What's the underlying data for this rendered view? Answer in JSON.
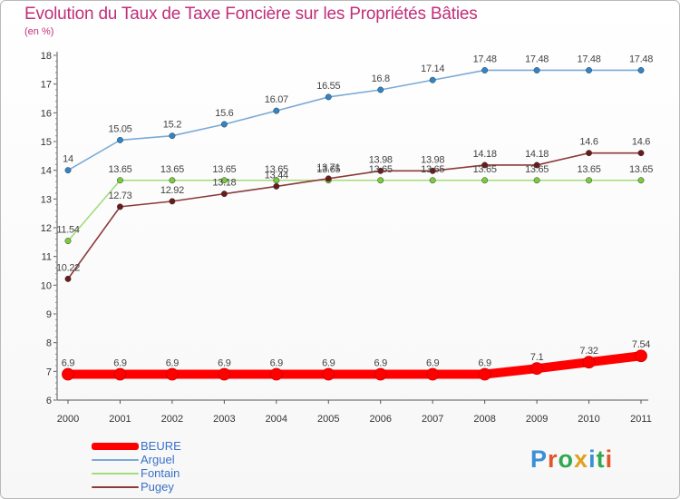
{
  "title": "Evolution du Taux de Taxe Foncière sur les Propriétés Bâties",
  "subtitle": "(en %)",
  "brand": {
    "letters": [
      "P",
      "r",
      "o",
      "x",
      "i",
      "t",
      "i"
    ],
    "colors": [
      "#3b8fd6",
      "#e0552b",
      "#2fa84f",
      "#e0a020",
      "#3b8fd6",
      "#2fa84f",
      "#e0552b"
    ]
  },
  "chart_data": {
    "type": "line",
    "title": "Evolution du Taux de Taxe Foncière sur les Propriétés Bâties",
    "ylabel": "(en %)",
    "xlabel": "",
    "ylim": [
      6,
      18
    ],
    "yticks": [
      6,
      7,
      8,
      9,
      10,
      11,
      12,
      13,
      14,
      15,
      16,
      17,
      18
    ],
    "categories": [
      "2000",
      "2001",
      "2002",
      "2003",
      "2004",
      "2005",
      "2006",
      "2007",
      "2008",
      "2009",
      "2010",
      "2011"
    ],
    "series": [
      {
        "name": "Arguel",
        "color": "#7aaad6",
        "marker": "#2f85c8",
        "values": [
          14,
          15.05,
          15.2,
          15.6,
          16.07,
          16.55,
          16.8,
          17.14,
          17.48,
          17.48,
          17.48,
          17.48
        ],
        "labels": [
          "14",
          "15.05",
          "15.2",
          "15.6",
          "16.07",
          "16.55",
          "16.8",
          "17.14",
          "17.48",
          "17.48",
          "17.48",
          "17.48"
        ]
      },
      {
        "name": "Fontain",
        "color": "#a3dc7a",
        "marker": "#7acc3a",
        "values": [
          11.54,
          13.65,
          13.65,
          13.65,
          13.65,
          13.65,
          13.65,
          13.65,
          13.65,
          13.65,
          13.65,
          13.65
        ],
        "labels": [
          "11.54",
          "13.65",
          "13.65",
          "13.65",
          "13.65",
          "13.65",
          "13.65",
          "13.65",
          "13.65",
          "13.65",
          "13.65",
          "13.65"
        ]
      },
      {
        "name": "Pugey",
        "color": "#8b3a3a",
        "marker": "#6b1a1a",
        "values": [
          10.22,
          12.73,
          12.92,
          13.18,
          13.44,
          13.71,
          13.98,
          13.98,
          14.18,
          14.18,
          14.6,
          14.6
        ],
        "labels": [
          "10.22",
          "12.73",
          "12.92",
          "13.18",
          "13.44",
          "13.71",
          "13.98",
          "13.98",
          "14.18",
          "14.18",
          "14.6",
          "14.6"
        ]
      },
      {
        "name": "BEURE",
        "color": "#ff0000",
        "marker": "#ff0000",
        "values": [
          6.9,
          6.9,
          6.9,
          6.9,
          6.9,
          6.9,
          6.9,
          6.9,
          6.9,
          7.1,
          7.32,
          7.54
        ],
        "labels": [
          "6.9",
          "6.9",
          "6.9",
          "6.9",
          "6.9",
          "6.9",
          "6.9",
          "6.9",
          "6.9",
          "7.1",
          "7.32",
          "7.54"
        ]
      }
    ],
    "legend": [
      "BEURE",
      "Arguel",
      "Fontain",
      "Pugey"
    ],
    "legend_position": "bottom-left",
    "grid": false
  }
}
